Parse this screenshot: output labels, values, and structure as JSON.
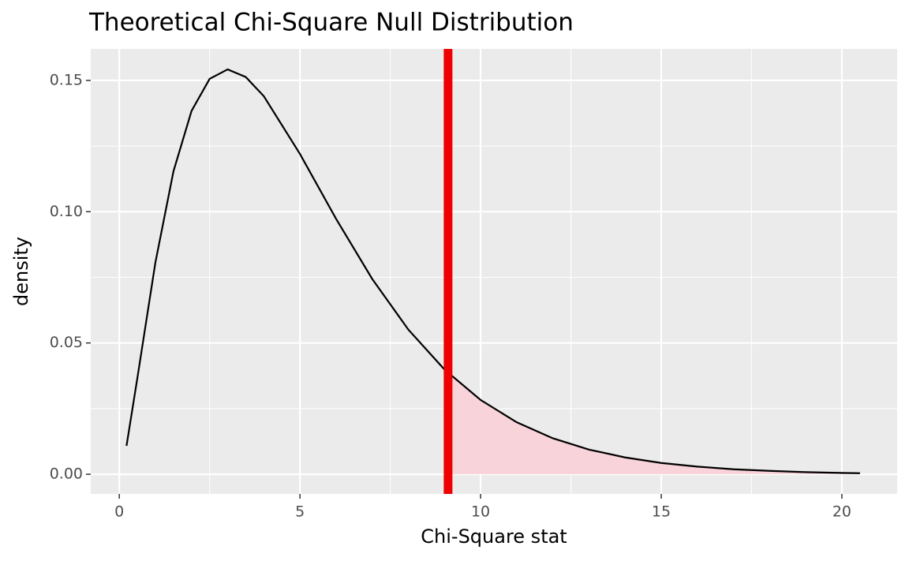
{
  "chart_data": {
    "type": "line",
    "title": "Theoretical Chi-Square Null Distribution",
    "x_label": "Chi-Square stat",
    "y_label": "density",
    "x": [
      0.2,
      0.5,
      1,
      1.5,
      2,
      2.5,
      3,
      3.5,
      4,
      5,
      6,
      7,
      8,
      9,
      10,
      11,
      12,
      13,
      14,
      15,
      16,
      17,
      18,
      19,
      20,
      20.5
    ],
    "values": [
      0.0108,
      0.0366,
      0.0807,
      0.1154,
      0.1384,
      0.1506,
      0.1542,
      0.1513,
      0.144,
      0.122,
      0.0973,
      0.0744,
      0.0551,
      0.0399,
      0.0283,
      0.0198,
      0.0137,
      0.0094,
      0.0064,
      0.0043,
      0.0029,
      0.0019,
      0.0013,
      0.0008,
      0.0005,
      0.0004
    ],
    "color": "#000000",
    "area": {
      "x": [
        9.1,
        10,
        11,
        12,
        13,
        14,
        15,
        16,
        17,
        18,
        19,
        20,
        20.5
      ],
      "values": [
        0.0386,
        0.0283,
        0.0198,
        0.0137,
        0.0094,
        0.0064,
        0.0043,
        0.0029,
        0.0019,
        0.0013,
        0.0008,
        0.0005,
        0.0004
      ],
      "color": "#f8d3da"
    },
    "vline": {
      "value": 9.1,
      "color": "#ee0000"
    },
    "xlim": [
      -0.79,
      21.53
    ],
    "ylim": [
      -0.0075,
      0.162
    ],
    "xticks": [
      0,
      5,
      10,
      15,
      20
    ],
    "yticks": [
      {
        "value": 0,
        "label": "0.00"
      },
      {
        "value": 0.05,
        "label": "0.05"
      },
      {
        "value": 0.1,
        "label": "0.10"
      },
      {
        "value": 0.15,
        "label": "0.15"
      }
    ],
    "x_minor_grid": [
      2.5,
      7.5,
      12.5,
      17.5
    ],
    "y_minor_grid": [
      0.025,
      0.075,
      0.125
    ],
    "grid": true
  }
}
